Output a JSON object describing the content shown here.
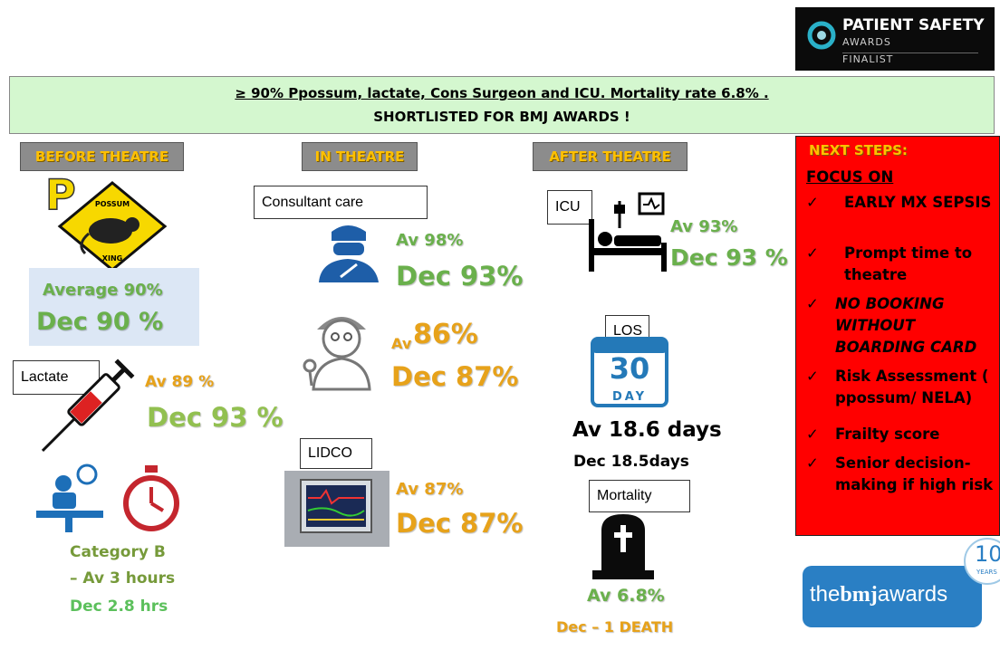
{
  "logo": {
    "title": "PATIENT SAFETY",
    "subtitle": "AWARDS",
    "status": "FINALIST"
  },
  "banner": {
    "line1": "≥ 90% Ppossum, lactate, Cons Surgeon and ICU. Mortality rate 6.8% .",
    "line2": "SHORTLISTED FOR BMJ AWARDS !"
  },
  "before": {
    "header": "BEFORE THEATRE",
    "p_letter": "P",
    "sign_top": "POSSUM",
    "sign_bottom": "XING",
    "possum_avg": "Average 90%",
    "possum_dec": "Dec 90 %",
    "lactate_label": "Lactate",
    "lactate_avg": "Av 89 %",
    "lactate_dec": "Dec 93 %",
    "category": "Category B",
    "category_avg": "– Av 3 hours",
    "category_dec": "Dec 2.8 hrs"
  },
  "in": {
    "header": "IN THEATRE",
    "consultant_label": "Consultant care",
    "consultant_avg": "Av 98%",
    "consultant_dec": "Dec 93%",
    "anaesthetist_avg_prefix": "Av",
    "anaesthetist_avg": "86%",
    "anaesthetist_dec": "Dec 87%",
    "lidco_label": "LIDCO",
    "lidco_avg": "Av 87%",
    "lidco_dec": "Dec 87%"
  },
  "after": {
    "header": "AFTER THEATRE",
    "icu_label": "ICU",
    "icu_avg": "Av 93%",
    "icu_dec": "Dec 93 %",
    "los_label": "LOS",
    "calendar_number": "30",
    "calendar_unit": "DAY",
    "los_avg": "Av 18.6 days",
    "los_dec": "Dec 18.5days",
    "mortality_label": "Mortality",
    "mortality_avg": "Av 6.8%",
    "mortality_dec": "Dec –  1 DEATH"
  },
  "next_steps": {
    "title": "NEXT STEPS:",
    "focus": "FOCUS ON",
    "check": "✓",
    "items": [
      "EARLY MX SEPSIS",
      "Prompt time to theatre",
      "NO BOOKING WITHOUT BOARDING CARD",
      "Risk Assessment ( ppossum/ NELA)",
      "Frailty score",
      "Senior decision-making if high risk"
    ]
  },
  "bmj": {
    "the": "the",
    "bmj": "bmj",
    "awards": "awards",
    "years_number": "10",
    "years": "YEARS"
  }
}
